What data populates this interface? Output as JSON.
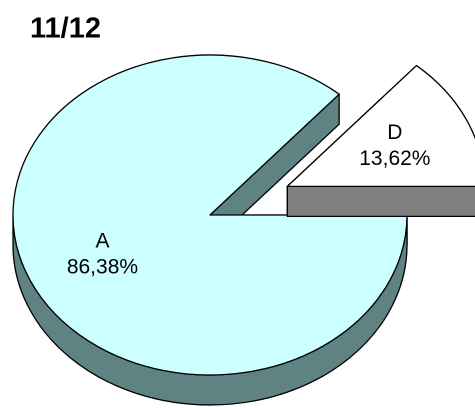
{
  "chart_data": {
    "type": "pie",
    "title": "11/12",
    "categories": [
      "A",
      "D"
    ],
    "values": [
      86.38,
      13.62
    ],
    "value_labels": [
      "86,38%",
      "13,62%"
    ],
    "colors": [
      "#ccffff",
      "#ffffff"
    ],
    "side_colors": [
      "#5f8282",
      "#808080"
    ],
    "exploded": [
      false,
      true
    ]
  }
}
